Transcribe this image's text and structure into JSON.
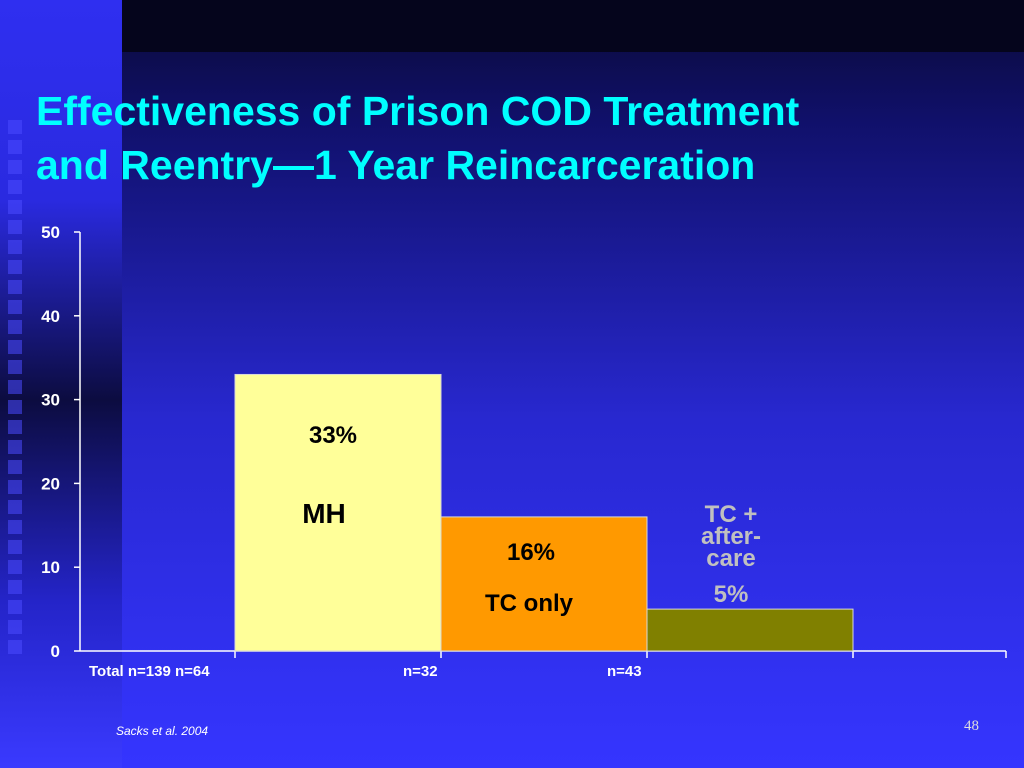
{
  "slide": {
    "title_line1": "Effectiveness of Prison COD Treatment",
    "title_line2": "and Reentry—1 Year Reincarceration",
    "citation": "Sacks et al. 2004",
    "page_number": "48",
    "colors": {
      "background": "#3535ff",
      "title": "#00ffff",
      "axis": "#ffffff"
    }
  },
  "chart_data": {
    "type": "bar",
    "categories": [
      "MH",
      "TC only",
      "TC + after-care"
    ],
    "values": [
      33,
      16,
      5
    ],
    "value_labels": [
      "33%",
      "16%",
      "5%"
    ],
    "category_labels": [
      [
        "MH"
      ],
      [
        "TC only"
      ],
      [
        "TC +",
        "after-",
        "care"
      ]
    ],
    "bar_colors": [
      "#ffff99",
      "#ff9900",
      "#808000"
    ],
    "label_colors": [
      "#000000",
      "#000000",
      "#c0c0c0"
    ],
    "ylim": [
      0,
      50
    ],
    "yticks": [
      0,
      10,
      20,
      30,
      40,
      50
    ],
    "grid": false,
    "xlabel": "",
    "ylabel": "",
    "x_annotations": [
      "Total n=139 n=64",
      "n=32",
      "n=43"
    ]
  }
}
